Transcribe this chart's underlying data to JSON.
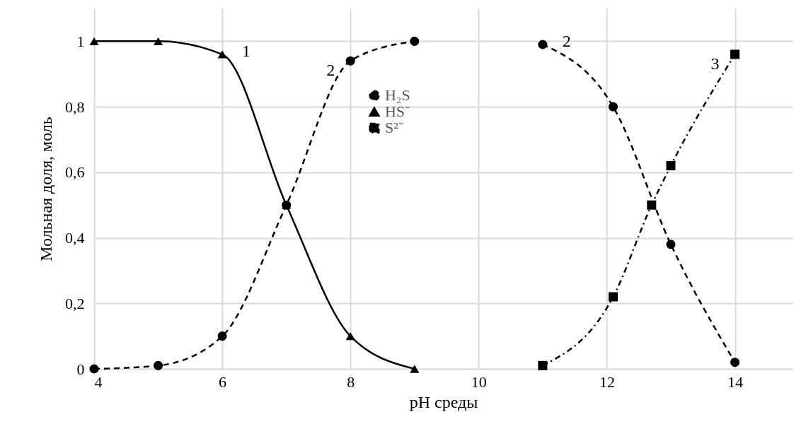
{
  "chart_data": {
    "type": "line",
    "xlabel": "pH среды",
    "ylabel": "Мольная доля, моль",
    "xlim": [
      4,
      14.9
    ],
    "xticks": [
      4,
      6,
      8,
      10,
      12,
      14
    ],
    "ylim": [
      0,
      1.1
    ],
    "yticks": [
      0,
      {
        "value": 0.2,
        "label": "0,2"
      },
      {
        "value": 0.4,
        "label": "0,4"
      },
      {
        "value": 0.6,
        "label": "0,6"
      },
      {
        "value": 0.8,
        "label": "0,8"
      },
      1
    ],
    "grid": true,
    "legend": "top",
    "series": [
      {
        "name": "H₂S",
        "color": "#000000",
        "marker": "circle",
        "line_style": "dashed",
        "x": [
          4,
          5,
          6,
          7,
          8,
          9,
          10,
          11,
          12.1,
          13,
          14
        ],
        "values": [
          0,
          0.01,
          0.1,
          0.5,
          0.94,
          1,
          null,
          0.99,
          0.8,
          0.38,
          0.02
        ]
      },
      {
        "name": "HS⁻",
        "color": "#000000",
        "marker": "triangle",
        "line_style": "solid",
        "x": [
          4,
          5,
          6,
          7,
          8,
          9
        ],
        "values": [
          1,
          1,
          0.96,
          0.5,
          0.1,
          0
        ]
      },
      {
        "name": "S²⁻",
        "color": "#000000",
        "marker": "square",
        "line_style": "dashdot",
        "x": [
          11,
          12.1,
          12.7,
          13,
          14
        ],
        "values": [
          0.01,
          0.22,
          0.5,
          0.62,
          0.96
        ]
      }
    ],
    "annotations": [
      {
        "text": "1",
        "x": 6,
        "y": 0.96
      },
      {
        "text": "2",
        "x": 8,
        "y": 0.94
      },
      {
        "text": "2",
        "x": 11,
        "y": 0.99
      },
      {
        "text": "3",
        "x": 14,
        "y": 0.96
      }
    ]
  }
}
